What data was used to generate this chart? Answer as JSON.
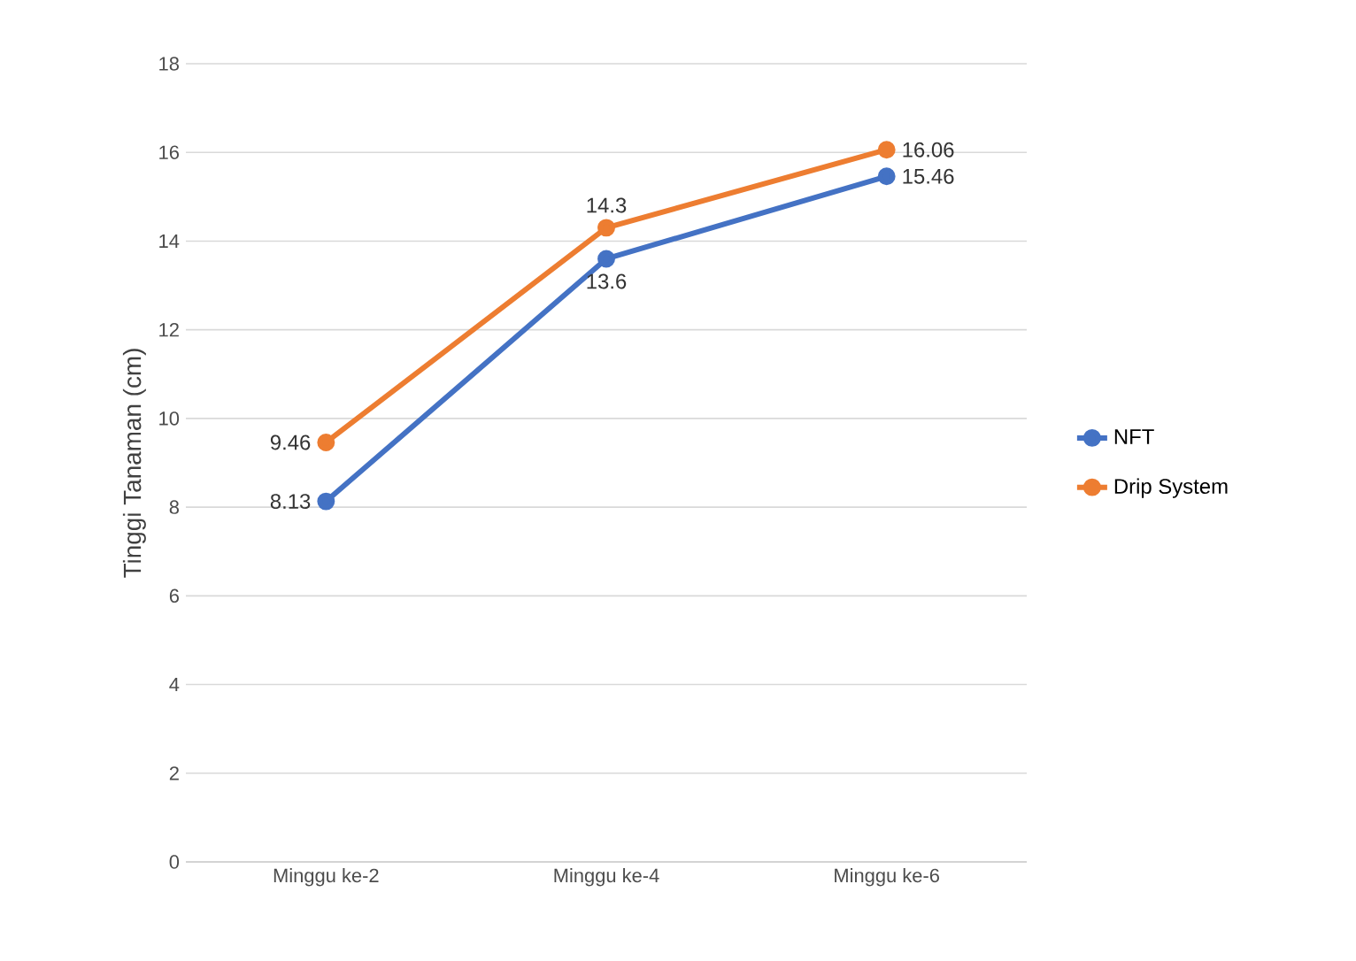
{
  "chart_data": {
    "type": "line",
    "ylabel": "Tinggi Tanaman (cm)",
    "categories": [
      "Minggu ke-2",
      "Minggu ke-4",
      "Minggu ke-6"
    ],
    "series": [
      {
        "name": "NFT",
        "color": "#4472c4",
        "values": [
          8.13,
          13.6,
          15.46
        ]
      },
      {
        "name": "Drip System",
        "color": "#ed7d31",
        "values": [
          9.46,
          14.3,
          16.06
        ]
      }
    ],
    "ylim": [
      0,
      18
    ],
    "yticks": [
      0,
      2,
      4,
      6,
      8,
      10,
      12,
      14,
      16,
      18
    ],
    "grid": "y",
    "legend": "right",
    "marker": "circle",
    "line_style": "solid",
    "data_labels": true
  }
}
